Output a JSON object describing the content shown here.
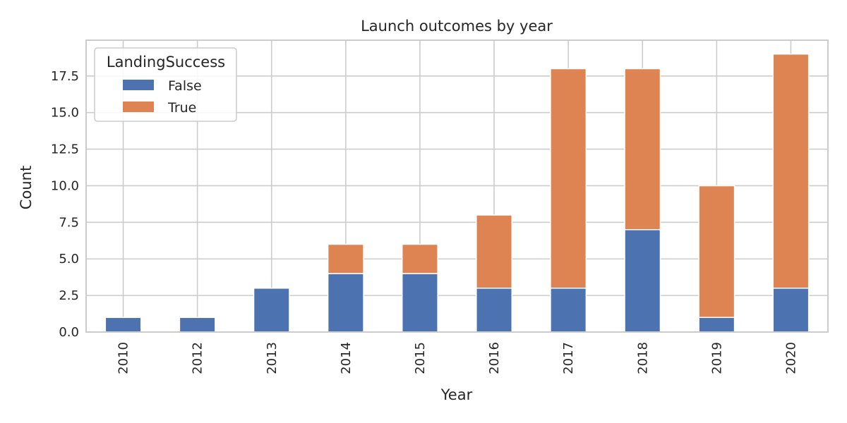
{
  "chart_data": {
    "type": "bar",
    "stacked": true,
    "title": "Launch outcomes by year",
    "xlabel": "Year",
    "ylabel": "Count",
    "categories": [
      "2010",
      "2012",
      "2013",
      "2014",
      "2015",
      "2016",
      "2017",
      "2018",
      "2019",
      "2020"
    ],
    "series": [
      {
        "name": "False",
        "color": "#4c72b0",
        "values": [
          1,
          1,
          3,
          4,
          4,
          3,
          3,
          7,
          1,
          3
        ]
      },
      {
        "name": "True",
        "color": "#dd8452",
        "values": [
          0,
          0,
          0,
          2,
          2,
          5,
          15,
          11,
          9,
          16
        ]
      }
    ],
    "ylim": [
      0,
      19.95
    ],
    "yticks": [
      0,
      2.5,
      5,
      7.5,
      10,
      12.5,
      15,
      17.5
    ],
    "ytick_labels": [
      "0.0",
      "2.5",
      "5.0",
      "7.5",
      "10.0",
      "12.5",
      "15.0",
      "17.5"
    ],
    "legend": {
      "title": "LandingSuccess",
      "position": "top-left"
    },
    "grid": true
  }
}
